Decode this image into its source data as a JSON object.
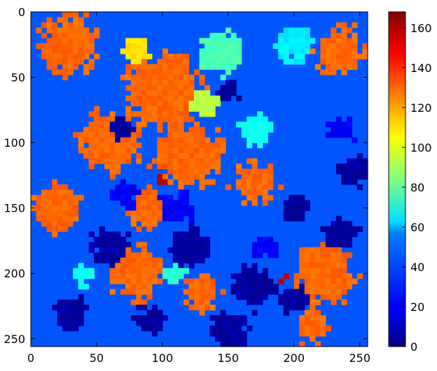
{
  "chart_data": {
    "type": "heatmap",
    "title": "",
    "xlabel": "",
    "ylabel": "",
    "colormap": "jet",
    "image_size": [
      256,
      256
    ],
    "xlim": [
      0,
      256
    ],
    "ylim": [
      256,
      0
    ],
    "x_ticks": [
      0,
      50,
      100,
      150,
      200,
      250
    ],
    "y_ticks": [
      0,
      50,
      100,
      150,
      200,
      250
    ],
    "colorbar": {
      "vmin": 0,
      "vmax": 168,
      "ticks": [
        0,
        20,
        40,
        60,
        80,
        100,
        120,
        140,
        160
      ]
    },
    "dominant_values": [
      130,
      35,
      5,
      20,
      75,
      60,
      95,
      160
    ],
    "grid": false
  }
}
